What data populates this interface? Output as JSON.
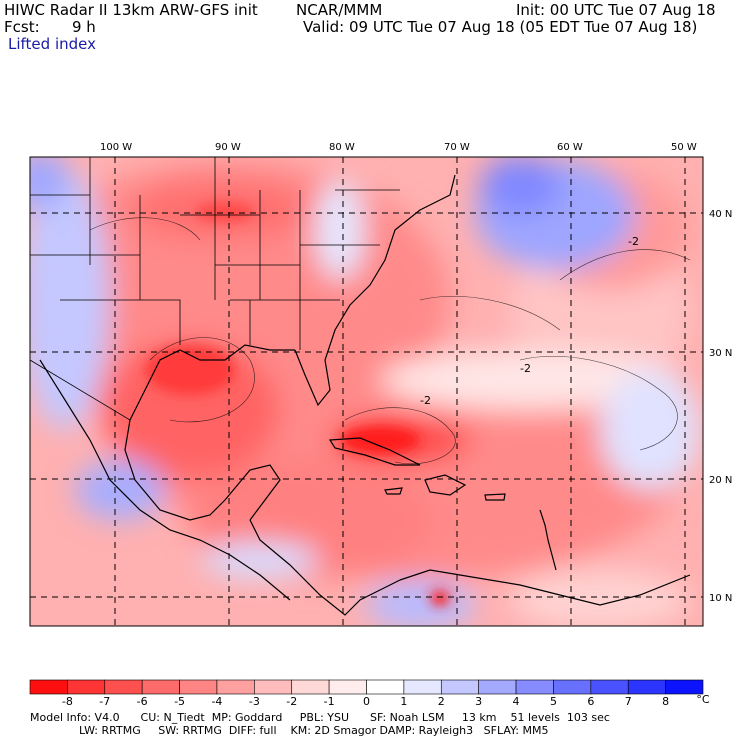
{
  "header": {
    "model_title": "HIWC Radar II 13km ARW-GFS init",
    "org": "NCAR/MMM",
    "init": "Init: 00 UTC Tue 07 Aug 18",
    "fcst_label": "Fcst:",
    "fcst_value": "9 h",
    "valid": "Valid: 09 UTC Tue 07 Aug 18 (05 EDT Tue 07 Aug 18)",
    "field": "Lifted index"
  },
  "map": {
    "lon_labels": [
      "100 W",
      "90 W",
      "80 W",
      "70 W",
      "60 W",
      "50 W"
    ],
    "lat_labels": [
      "40 N",
      "30 N",
      "20 N",
      "10 N"
    ],
    "contour_label": "-2"
  },
  "colorbar": {
    "ticks": [
      "-8",
      "-7",
      "-6",
      "-5",
      "-4",
      "-3",
      "-2",
      "-1",
      "0",
      "1",
      "2",
      "3",
      "4",
      "5",
      "6",
      "7",
      "8"
    ],
    "unit": "°C",
    "colors": [
      "#ff1010",
      "#ff3434",
      "#ff5050",
      "#ff6a6a",
      "#ff8585",
      "#ffa0a0",
      "#ffbcbc",
      "#ffd8d8",
      "#ffeded",
      "#ffffff",
      "#e6e8ff",
      "#c4c8ff",
      "#a4aaff",
      "#868cff",
      "#6870ff",
      "#4a52ff",
      "#2c34ff",
      "#0c14ff"
    ]
  },
  "footer": {
    "line1": "Model Info: V4.0      CU: N_Tiedt  MP: Goddard     PBL: YSU      SF: Noah LSM     13 km    51 levels  103 sec",
    "line2": "              LW: RRTMG     SW: RRTMG  DIFF: full    KM: 2D Smagor DAMP: Rayleigh3   SFLAY: MM5"
  }
}
